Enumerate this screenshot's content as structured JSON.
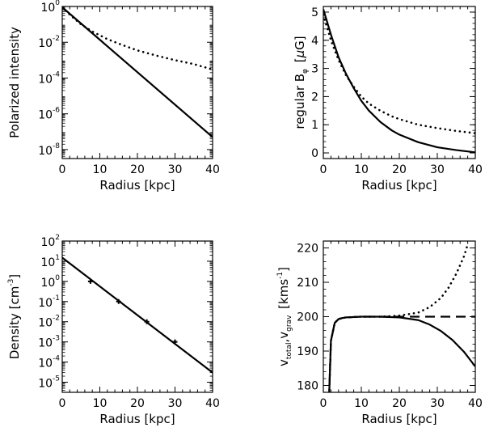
{
  "chart_data": [
    {
      "id": "polarized",
      "type": "line",
      "xlabel": "Radius [kpc]",
      "ylabel": "Polarized intensity",
      "yscale": "log",
      "xlim": [
        0,
        40
      ],
      "ylim_exp": [
        -8.5,
        0
      ],
      "x_ticks": [
        0,
        10,
        20,
        30,
        40
      ],
      "x_tick_labels": [
        "0",
        "10",
        "20",
        "30",
        "40"
      ],
      "y_ticks": [
        0,
        -2,
        -4,
        -6,
        -8
      ],
      "y_tick_base": "10",
      "y_tick_exps": [
        "0",
        "-2",
        "-4",
        "-6",
        "-8"
      ],
      "series": [
        {
          "name": "solid",
          "style": "solid",
          "x": [
            0,
            40
          ],
          "y": [
            0.9,
            5e-08
          ]
        },
        {
          "name": "dotted",
          "style": "dotted",
          "x": [
            0,
            2,
            5,
            8,
            12,
            16,
            20,
            25,
            30,
            35,
            40
          ],
          "y": [
            0.9,
            0.35,
            0.1,
            0.04,
            0.015,
            0.007,
            0.0035,
            0.0018,
            0.001,
            0.0006,
            0.0003
          ]
        }
      ]
    },
    {
      "id": "bfield",
      "type": "line",
      "xlabel": "Radius [kpc]",
      "ylabel_main": "regular B",
      "ylabel_sub": "φ",
      "ylabel_unit_open": "[",
      "ylabel_unit_mu": "μ",
      "ylabel_unit_rest": "G]",
      "yscale": "linear",
      "xlim": [
        0,
        40
      ],
      "ylim": [
        -0.2,
        5.2
      ],
      "x_ticks": [
        0,
        10,
        20,
        30,
        40
      ],
      "x_tick_labels": [
        "0",
        "10",
        "20",
        "30",
        "40"
      ],
      "y_ticks": [
        0,
        1,
        2,
        3,
        4,
        5
      ],
      "y_tick_labels": [
        "0",
        "1",
        "2",
        "3",
        "4",
        "5"
      ],
      "series": [
        {
          "name": "solid",
          "style": "solid",
          "x": [
            0,
            2,
            4,
            6,
            8,
            10,
            12,
            15,
            18,
            20,
            25,
            30,
            35,
            40
          ],
          "y": [
            5.1,
            4.2,
            3.4,
            2.8,
            2.3,
            1.85,
            1.5,
            1.1,
            0.8,
            0.65,
            0.38,
            0.2,
            0.1,
            0.02
          ]
        },
        {
          "name": "dotted",
          "style": "dotted",
          "x": [
            0,
            2,
            4,
            6,
            8,
            10,
            12,
            15,
            18,
            20,
            25,
            30,
            35,
            40
          ],
          "y": [
            4.9,
            4.0,
            3.3,
            2.75,
            2.35,
            2.0,
            1.75,
            1.5,
            1.3,
            1.2,
            1.0,
            0.88,
            0.78,
            0.7
          ]
        }
      ]
    },
    {
      "id": "density",
      "type": "line",
      "xlabel": "Radius [kpc]",
      "ylabel_main": "Density [cm",
      "ylabel_sup": "-3",
      "ylabel_close": "]",
      "yscale": "log",
      "xlim": [
        0,
        40
      ],
      "ylim_exp": [
        -5.5,
        2
      ],
      "x_ticks": [
        0,
        10,
        20,
        30,
        40
      ],
      "x_tick_labels": [
        "0",
        "10",
        "20",
        "30",
        "40"
      ],
      "y_ticks": [
        2,
        1,
        0,
        -1,
        -2,
        -3,
        -4,
        -5
      ],
      "y_tick_base": "10",
      "y_tick_exps": [
        "2",
        "1",
        "0",
        "-1",
        "-2",
        "-3",
        "-4",
        "-5"
      ],
      "series": [
        {
          "name": "fit",
          "style": "solid",
          "x": [
            0,
            40
          ],
          "y": [
            15,
            3e-05
          ]
        },
        {
          "name": "points",
          "style": "markers",
          "x": [
            7.5,
            15,
            22.5,
            30
          ],
          "y": [
            1.0,
            0.1,
            0.01,
            0.001
          ]
        }
      ]
    },
    {
      "id": "velocity",
      "type": "line",
      "xlabel": "Radius [kpc]",
      "ylabel_v1": "v",
      "ylabel_sub1": "total",
      "ylabel_sep": ",v",
      "ylabel_sub2": "grav",
      "ylabel_unit": "[kms",
      "ylabel_sup": "-1",
      "ylabel_close": "]",
      "yscale": "linear",
      "xlim": [
        0,
        40
      ],
      "ylim": [
        178,
        222
      ],
      "x_ticks": [
        0,
        10,
        20,
        30,
        40
      ],
      "x_tick_labels": [
        "0",
        "10",
        "20",
        "30",
        "40"
      ],
      "y_ticks": [
        180,
        190,
        200,
        210,
        220
      ],
      "y_tick_labels": [
        "180",
        "190",
        "200",
        "210",
        "220"
      ],
      "series": [
        {
          "name": "solid",
          "style": "solid",
          "x": [
            1.5,
            2,
            3,
            4,
            5,
            6,
            8,
            10,
            15,
            20,
            25,
            28,
            31,
            34,
            37,
            40
          ],
          "y": [
            176,
            193,
            198.2,
            199.3,
            199.6,
            199.8,
            199.9,
            200,
            200,
            199.8,
            199,
            197.7,
            195.8,
            193.2,
            189.8,
            185.5
          ]
        },
        {
          "name": "dotted",
          "style": "dotted",
          "x": [
            1.5,
            2,
            3,
            4,
            5,
            6,
            8,
            10,
            15,
            20,
            25,
            28,
            31,
            33,
            35,
            37,
            38
          ],
          "y": [
            176,
            193,
            198.2,
            199.3,
            199.6,
            199.8,
            199.9,
            200,
            200,
            200.3,
            201.2,
            202.8,
            205.5,
            208.5,
            212.5,
            217.5,
            221
          ]
        },
        {
          "name": "dashed",
          "style": "dashed",
          "x": [
            1.5,
            2,
            3,
            4,
            5,
            6,
            8,
            10,
            20,
            30,
            40
          ],
          "y": [
            176,
            193,
            198.2,
            199.3,
            199.6,
            199.8,
            199.9,
            200,
            200,
            200,
            200
          ]
        }
      ]
    }
  ]
}
